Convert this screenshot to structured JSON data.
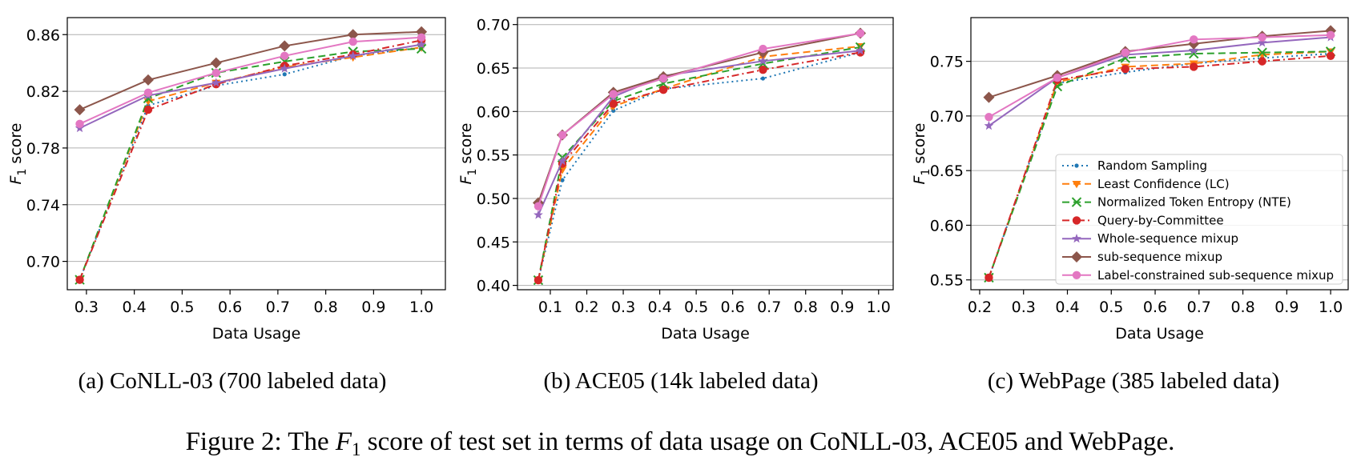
{
  "figure_caption": {
    "before": "Figure 2: The ",
    "symbol": "F",
    "sub": "1",
    "after": " score of test set in terms of data usage on CoNLL-03, ACE05 and WebPage."
  },
  "series_styles": [
    {
      "key": "random",
      "color": "#1f77b4",
      "dash": "2,4",
      "marker": "dot"
    },
    {
      "key": "lc",
      "color": "#ff7f0e",
      "dash": "9,5",
      "marker": "tri_down"
    },
    {
      "key": "nte",
      "color": "#2ca02c",
      "dash": "9,5",
      "marker": "x"
    },
    {
      "key": "qbc",
      "color": "#d62728",
      "dash": "9,4,2,4",
      "marker": "circle"
    },
    {
      "key": "whole",
      "color": "#9467bd",
      "dash": "",
      "marker": "star"
    },
    {
      "key": "sub",
      "color": "#8c564b",
      "dash": "",
      "marker": "diamond"
    },
    {
      "key": "lcsub",
      "color": "#e377c2",
      "dash": "",
      "marker": "circle"
    }
  ],
  "chart_data": [
    {
      "type": "line",
      "subcaption": "(a)  CoNLL-03 (700 labeled data)",
      "xlabel": "Data Usage",
      "ylabel_symbol": "F",
      "ylabel_sub": "1",
      "ylabel_rest": " score",
      "xlim": [
        0.26,
        1.05
      ],
      "ylim": [
        0.68,
        0.872
      ],
      "xticks": [
        0.3,
        0.4,
        0.5,
        0.6,
        0.7,
        0.8,
        0.9,
        1.0
      ],
      "xtick_labels": [
        "0.3",
        "0.4",
        "0.5",
        "0.6",
        "0.7",
        "0.8",
        "0.9",
        "1.0"
      ],
      "yticks": [
        0.7,
        0.74,
        0.78,
        0.82,
        0.86
      ],
      "ytick_labels": [
        "0.70",
        "0.74",
        "0.78",
        "0.82",
        "0.86"
      ],
      "grid": true,
      "x": [
        0.286,
        0.429,
        0.571,
        0.714,
        0.857,
        1.0
      ],
      "series": [
        {
          "name": "Random Sampling",
          "values": [
            0.687,
            0.81,
            0.824,
            0.832,
            0.845,
            0.851
          ]
        },
        {
          "name": "Least Confidence (LC)",
          "values": [
            0.687,
            0.813,
            0.826,
            0.837,
            0.844,
            0.851
          ]
        },
        {
          "name": "Normalized Token Entropy (NTE)",
          "values": [
            0.687,
            0.815,
            0.833,
            0.841,
            0.848,
            0.85
          ]
        },
        {
          "name": "Query-by-Committee",
          "values": [
            0.687,
            0.807,
            0.825,
            0.838,
            0.846,
            0.856
          ]
        },
        {
          "name": "Whole-sequence mixup",
          "values": [
            0.794,
            0.817,
            0.826,
            0.836,
            0.845,
            0.853
          ]
        },
        {
          "name": "sub-sequence mixup",
          "values": [
            0.807,
            0.828,
            0.84,
            0.852,
            0.86,
            0.862
          ]
        },
        {
          "name": "Label-constrained sub-sequence mixup",
          "values": [
            0.797,
            0.819,
            0.833,
            0.845,
            0.855,
            0.858
          ]
        }
      ]
    },
    {
      "type": "line",
      "subcaption": "(b)  ACE05 (14k labeled data)",
      "xlabel": "Data Usage",
      "ylabel_symbol": "F",
      "ylabel_sub": "1",
      "ylabel_rest": " score",
      "xlim": [
        0.01,
        1.04
      ],
      "ylim": [
        0.395,
        0.708
      ],
      "xticks": [
        0.1,
        0.2,
        0.3,
        0.4,
        0.5,
        0.6,
        0.7,
        0.8,
        0.9,
        1.0
      ],
      "xtick_labels": [
        "0.1",
        "0.2",
        "0.3",
        "0.4",
        "0.5",
        "0.6",
        "0.7",
        "0.8",
        "0.9",
        "1.0"
      ],
      "yticks": [
        0.4,
        0.45,
        0.5,
        0.55,
        0.6,
        0.65,
        0.7
      ],
      "ytick_labels": [
        "0.40",
        "0.45",
        "0.50",
        "0.55",
        "0.60",
        "0.65",
        "0.70"
      ],
      "grid": true,
      "x": [
        0.067,
        0.133,
        0.273,
        0.41,
        0.683,
        0.95
      ],
      "series": [
        {
          "name": "Random Sampling",
          "values": [
            0.406,
            0.521,
            0.601,
            0.626,
            0.638,
            0.668
          ]
        },
        {
          "name": "Least Confidence (LC)",
          "values": [
            0.406,
            0.533,
            0.606,
            0.626,
            0.663,
            0.675
          ]
        },
        {
          "name": "Normalized Token Entropy (NTE)",
          "values": [
            0.406,
            0.547,
            0.612,
            0.632,
            0.655,
            0.674
          ]
        },
        {
          "name": "Query-by-Committee",
          "values": [
            0.406,
            0.54,
            0.609,
            0.625,
            0.648,
            0.668
          ]
        },
        {
          "name": "Whole-sequence mixup",
          "values": [
            0.481,
            0.543,
            0.617,
            0.641,
            0.658,
            0.67
          ]
        },
        {
          "name": "sub-sequence mixup",
          "values": [
            0.495,
            0.573,
            0.622,
            0.64,
            0.668,
            0.69
          ]
        },
        {
          "name": "Label-constrained sub-sequence mixup",
          "values": [
            0.491,
            0.573,
            0.62,
            0.638,
            0.672,
            0.69
          ]
        }
      ]
    },
    {
      "type": "line",
      "subcaption": "(c)  WebPage (385 labeled data)",
      "xlabel": "Data Usage",
      "ylabel_symbol": "F",
      "ylabel_sub": "1",
      "ylabel_rest": " score",
      "xlim": [
        0.18,
        1.04
      ],
      "ylim": [
        0.541,
        0.79
      ],
      "xticks": [
        0.2,
        0.3,
        0.4,
        0.5,
        0.6,
        0.7,
        0.8,
        0.9,
        1.0
      ],
      "xtick_labels": [
        "0.2",
        "0.3",
        "0.4",
        "0.5",
        "0.6",
        "0.7",
        "0.8",
        "0.9",
        "1.0"
      ],
      "yticks": [
        0.55,
        0.6,
        0.65,
        0.7,
        0.75
      ],
      "ytick_labels": [
        "0.55",
        "0.60",
        "0.65",
        "0.70",
        "0.75"
      ],
      "grid": true,
      "legend_position": "center-right",
      "x": [
        0.221,
        0.377,
        0.532,
        0.688,
        0.844,
        1.0
      ],
      "series": [
        {
          "name": "Random Sampling",
          "values": [
            0.552,
            0.73,
            0.74,
            0.748,
            0.753,
            0.757
          ]
        },
        {
          "name": "Least Confidence (LC)",
          "values": [
            0.552,
            0.731,
            0.745,
            0.748,
            0.756,
            0.759
          ]
        },
        {
          "name": "Normalized Token Entropy (NTE)",
          "values": [
            0.552,
            0.727,
            0.753,
            0.757,
            0.758,
            0.759
          ]
        },
        {
          "name": "Query-by-Committee",
          "values": [
            0.552,
            0.733,
            0.743,
            0.745,
            0.75,
            0.755
          ]
        },
        {
          "name": "Whole-sequence mixup",
          "values": [
            0.691,
            0.735,
            0.756,
            0.76,
            0.767,
            0.772
          ]
        },
        {
          "name": "sub-sequence mixup",
          "values": [
            0.717,
            0.737,
            0.759,
            0.766,
            0.773,
            0.778
          ]
        },
        {
          "name": "Label-constrained sub-sequence mixup",
          "values": [
            0.699,
            0.735,
            0.758,
            0.77,
            0.772,
            0.774
          ]
        }
      ]
    }
  ]
}
